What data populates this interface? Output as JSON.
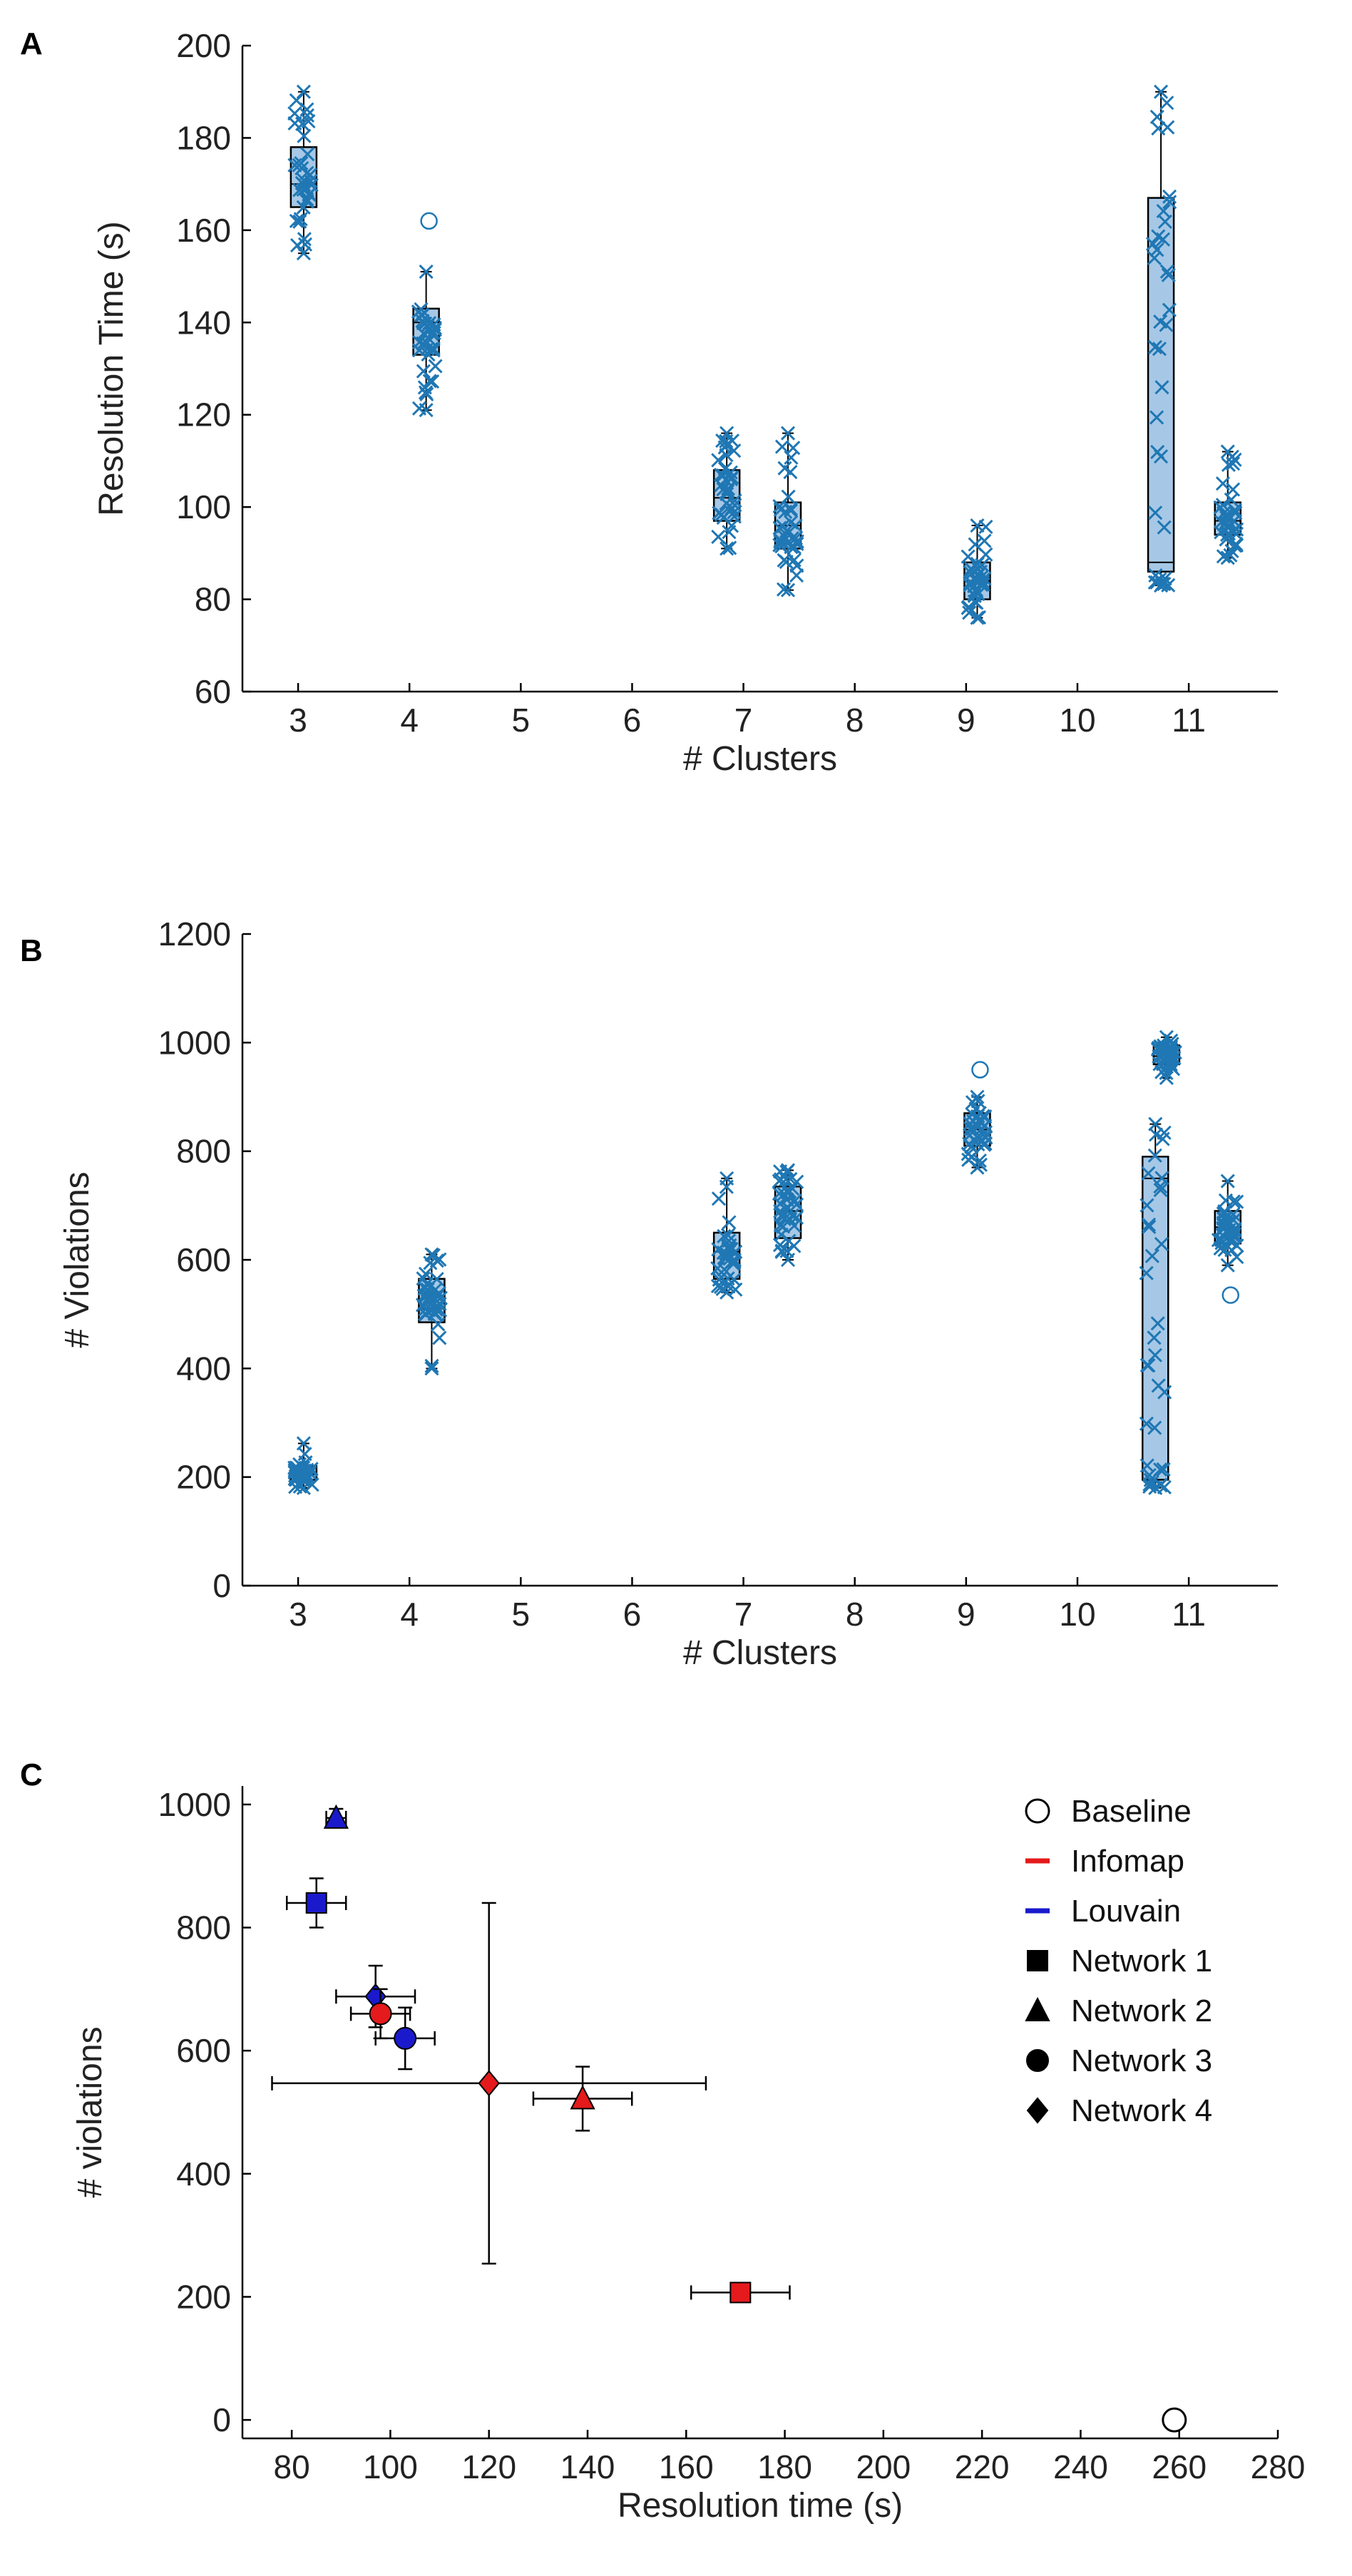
{
  "panel_letters": [
    "A",
    "B",
    "C"
  ],
  "colors": {
    "marker": "#1f77b4",
    "box_fill": "#a6c8e6",
    "axis": "#000000",
    "infomap": "#e41a1c",
    "louvain": "#1a1acc"
  },
  "chart_data": [
    {
      "panel": "A",
      "type": "box",
      "xlabel": "# Clusters",
      "ylabel": "Resolution Time (s)",
      "xlim": [
        2.5,
        11.8
      ],
      "ylim": [
        60,
        200
      ],
      "xticks": [
        3,
        4,
        5,
        6,
        7,
        8,
        9,
        10,
        11
      ],
      "yticks": [
        60,
        80,
        100,
        120,
        140,
        160,
        180,
        200
      ],
      "boxes": [
        {
          "x": 3.05,
          "q1": 165,
          "median": 170,
          "q3": 178,
          "whisker_low": 155,
          "whisker_high": 190,
          "outliers": []
        },
        {
          "x": 4.15,
          "q1": 133,
          "median": 140,
          "q3": 143,
          "whisker_low": 121,
          "whisker_high": 151,
          "outliers": [
            162
          ]
        },
        {
          "x": 6.85,
          "q1": 97,
          "median": 102,
          "q3": 108,
          "whisker_low": 91,
          "whisker_high": 116,
          "outliers": []
        },
        {
          "x": 7.4,
          "q1": 91,
          "median": 96,
          "q3": 101,
          "whisker_low": 82,
          "whisker_high": 116,
          "outliers": []
        },
        {
          "x": 9.1,
          "q1": 80,
          "median": 84,
          "q3": 88,
          "whisker_low": 76,
          "whisker_high": 96,
          "outliers": []
        },
        {
          "x": 10.75,
          "q1": 86,
          "median": 88,
          "q3": 167,
          "whisker_low": 83,
          "whisker_high": 190,
          "outliers": []
        },
        {
          "x": 11.35,
          "q1": 94,
          "median": 97,
          "q3": 101,
          "whisker_low": 89,
          "whisker_high": 112,
          "outliers": []
        }
      ]
    },
    {
      "panel": "B",
      "type": "box",
      "xlabel": "# Clusters",
      "ylabel": "# Violations",
      "xlim": [
        2.5,
        11.8
      ],
      "ylim": [
        0,
        1200
      ],
      "xticks": [
        3,
        4,
        5,
        6,
        7,
        8,
        9,
        10,
        11
      ],
      "yticks": [
        0,
        200,
        400,
        600,
        800,
        1000,
        1200
      ],
      "boxes": [
        {
          "x": 3.05,
          "q1": 195,
          "median": 205,
          "q3": 220,
          "whisker_low": 180,
          "whisker_high": 262,
          "outliers": []
        },
        {
          "x": 4.2,
          "q1": 485,
          "median": 510,
          "q3": 565,
          "whisker_low": 400,
          "whisker_high": 610,
          "outliers": []
        },
        {
          "x": 6.85,
          "q1": 565,
          "median": 615,
          "q3": 650,
          "whisker_low": 540,
          "whisker_high": 750,
          "outliers": []
        },
        {
          "x": 7.4,
          "q1": 640,
          "median": 690,
          "q3": 735,
          "whisker_low": 600,
          "whisker_high": 765,
          "outliers": []
        },
        {
          "x": 9.1,
          "q1": 810,
          "median": 840,
          "q3": 870,
          "whisker_low": 770,
          "whisker_high": 900,
          "outliers": [
            950
          ]
        },
        {
          "x": 10.7,
          "q1": 195,
          "median": 750,
          "q3": 790,
          "whisker_low": 180,
          "whisker_high": 850,
          "outliers": []
        },
        {
          "x": 10.8,
          "q1": 960,
          "median": 975,
          "q3": 995,
          "whisker_low": 935,
          "whisker_high": 1010,
          "outliers": []
        },
        {
          "x": 11.35,
          "q1": 630,
          "median": 660,
          "q3": 690,
          "whisker_low": 590,
          "whisker_high": 745,
          "outliers": [
            535
          ]
        }
      ]
    },
    {
      "panel": "C",
      "type": "scatter",
      "xlabel": "Resolution time (s)",
      "ylabel": "# violations",
      "xlim": [
        70,
        280
      ],
      "ylim": [
        -30,
        1030
      ],
      "xticks": [
        80,
        100,
        120,
        140,
        160,
        180,
        200,
        220,
        240,
        260,
        280
      ],
      "yticks": [
        0,
        200,
        400,
        600,
        800,
        1000
      ],
      "legend": {
        "placement": "top-right",
        "entries": [
          {
            "label": "Baseline",
            "symbol": "open-circle"
          },
          {
            "label": "Infomap",
            "symbol": "red-line"
          },
          {
            "label": "Louvain",
            "symbol": "blue-line"
          },
          {
            "label": "Network 1",
            "symbol": "square"
          },
          {
            "label": "Network 2",
            "symbol": "triangle"
          },
          {
            "label": "Network 3",
            "symbol": "circle"
          },
          {
            "label": "Network 4",
            "symbol": "diamond"
          }
        ]
      },
      "points": [
        {
          "algorithm": "Louvain",
          "network": "Network 1",
          "x": 85,
          "y": 840,
          "xerr": 6,
          "yerr": 40
        },
        {
          "algorithm": "Louvain",
          "network": "Network 2",
          "x": 89,
          "y": 978,
          "xerr": 2,
          "yerr": 15
        },
        {
          "algorithm": "Louvain",
          "network": "Network 4",
          "x": 97,
          "y": 688,
          "xerr": 8,
          "yerr": 50
        },
        {
          "algorithm": "Louvain",
          "network": "Network 3",
          "x": 103,
          "y": 620,
          "xerr": 6,
          "yerr": 50
        },
        {
          "algorithm": "Infomap",
          "network": "Network 3",
          "x": 98,
          "y": 660,
          "xerr": 6,
          "yerr": 40
        },
        {
          "algorithm": "Infomap",
          "network": "Network 4",
          "x": 120,
          "y": 547,
          "xerr": 44,
          "yerr": 293
        },
        {
          "algorithm": "Infomap",
          "network": "Network 2",
          "x": 139,
          "y": 522,
          "xerr": 10,
          "yerr": 52
        },
        {
          "algorithm": "Infomap",
          "network": "Network 1",
          "x": 171,
          "y": 207,
          "xerr": 10,
          "yerr": 15
        },
        {
          "algorithm": "Baseline",
          "network": "Baseline",
          "x": 259,
          "y": 0,
          "xerr": 0,
          "yerr": 0
        }
      ]
    }
  ]
}
